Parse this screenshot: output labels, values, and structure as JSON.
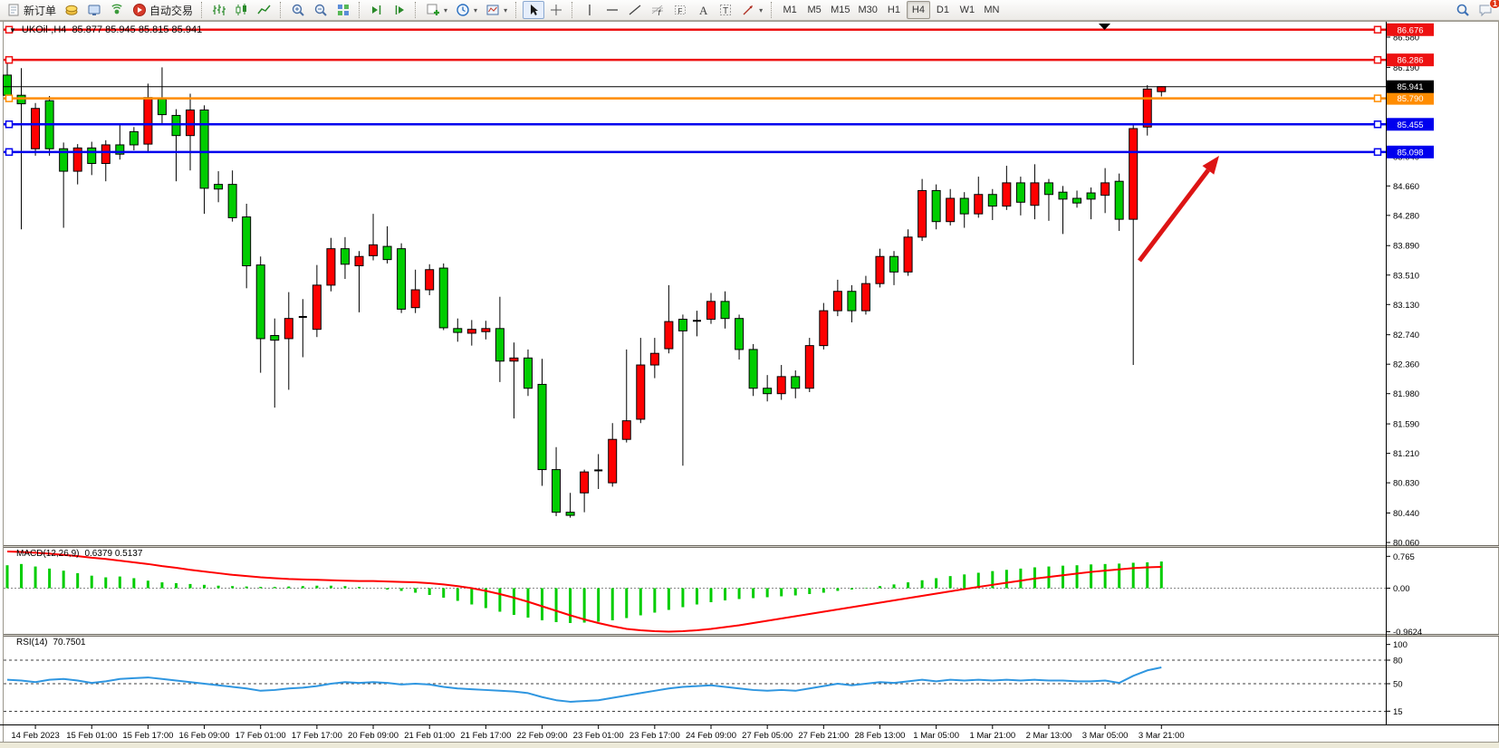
{
  "toolbar": {
    "new_order_label": "新订单",
    "autotrading_label": "自动交易",
    "timeframes": [
      "M1",
      "M5",
      "M15",
      "M30",
      "H1",
      "H4",
      "D1",
      "W1",
      "MN"
    ],
    "active_timeframe": "H4",
    "chat_badge": "1",
    "items": [
      {
        "type": "btn",
        "name": "new-order-button",
        "icon": "doc",
        "label_key": "new_order_label"
      },
      {
        "type": "btn",
        "name": "market-watch-button",
        "icon": "coins"
      },
      {
        "type": "btn",
        "name": "data-window-button",
        "icon": "monitor"
      },
      {
        "type": "btn",
        "name": "navigator-button",
        "icon": "signal"
      },
      {
        "type": "btn",
        "name": "autotrading-button",
        "icon": "autotrade",
        "label_key": "autotrading_label"
      },
      {
        "type": "sep"
      },
      {
        "type": "btn",
        "name": "bar-chart-button",
        "icon": "bars"
      },
      {
        "type": "btn",
        "name": "candlestick-chart-button",
        "icon": "candles"
      },
      {
        "type": "btn",
        "name": "line-chart-button",
        "icon": "line"
      },
      {
        "type": "sep"
      },
      {
        "type": "btn",
        "name": "zoom-in-button",
        "icon": "zoomin"
      },
      {
        "type": "btn",
        "name": "zoom-out-button",
        "icon": "zoomout"
      },
      {
        "type": "btn",
        "name": "tile-windows-button",
        "icon": "tile"
      },
      {
        "type": "sep"
      },
      {
        "type": "btn",
        "name": "auto-scroll-button",
        "icon": "scrollend"
      },
      {
        "type": "btn",
        "name": "chart-shift-button",
        "icon": "shift"
      },
      {
        "type": "sep"
      },
      {
        "type": "btn",
        "name": "add-indicator-button",
        "icon": "pluschart",
        "dd": true
      },
      {
        "type": "btn",
        "name": "periods-button",
        "icon": "clock",
        "dd": true
      },
      {
        "type": "btn",
        "name": "templates-button",
        "icon": "template",
        "dd": true
      },
      {
        "type": "sep"
      },
      {
        "type": "btn",
        "name": "cursor-button",
        "icon": "cursor",
        "active": true
      },
      {
        "type": "btn",
        "name": "crosshair-button",
        "icon": "crosshair"
      },
      {
        "type": "sep"
      },
      {
        "type": "btn",
        "name": "vertical-line-button",
        "icon": "vline"
      },
      {
        "type": "btn",
        "name": "horizontal-line-button",
        "icon": "hline"
      },
      {
        "type": "btn",
        "name": "trendline-button",
        "icon": "trend"
      },
      {
        "type": "btn",
        "name": "fibonacci-button",
        "icon": "fibo"
      },
      {
        "type": "btn",
        "name": "fibo-expansion-button",
        "icon": "channel"
      },
      {
        "type": "btn",
        "name": "text-button",
        "icon": "textA"
      },
      {
        "type": "btn",
        "name": "text-label-button",
        "icon": "textT"
      },
      {
        "type": "btn",
        "name": "arrows-button",
        "icon": "arrows",
        "dd": true
      },
      {
        "type": "sep"
      },
      {
        "type": "timeframes"
      },
      {
        "type": "spacer"
      },
      {
        "type": "btn",
        "name": "search-button",
        "icon": "search"
      },
      {
        "type": "btn",
        "name": "chat-button",
        "icon": "chat",
        "badge": "1"
      }
    ]
  },
  "chart_data": {
    "type": "candlestick",
    "symbol_title": "UKOil-,H4",
    "ohlc_text": "85.877 85.945 85.815 85.941",
    "ylim": [
      80.03,
      86.77
    ],
    "price_ticks": [
      "86.580",
      "86.190",
      "85.800",
      "85.420",
      "85.040",
      "84.660",
      "84.280",
      "83.890",
      "83.510",
      "83.130",
      "82.740",
      "82.360",
      "81.980",
      "81.590",
      "81.210",
      "80.830",
      "80.440",
      "80.060"
    ],
    "time_labels": [
      "14 Feb 2023",
      "15 Feb 01:00",
      "15 Feb 17:00",
      "16 Feb 09:00",
      "17 Feb 01:00",
      "17 Feb 17:00",
      "20 Feb 09:00",
      "21 Feb 01:00",
      "21 Feb 17:00",
      "22 Feb 09:00",
      "23 Feb 01:00",
      "23 Feb 17:00",
      "24 Feb 09:00",
      "27 Feb 05:00",
      "27 Feb 21:00",
      "28 Feb 13:00",
      "1 Mar 05:00",
      "1 Mar 21:00",
      "2 Mar 13:00",
      "3 Mar 05:00",
      "3 Mar 21:00"
    ],
    "first_label_bar": 2,
    "label_every_bars": 4,
    "colors": {
      "bull": "#fe0000",
      "bear": "#00cd00",
      "wick": "#000000",
      "bg": "#ffffff"
    },
    "hlines": [
      {
        "price": 86.676,
        "label": "86.676",
        "color": "#ee1111"
      },
      {
        "price": 86.286,
        "label": "86.286",
        "color": "#ee1111"
      },
      {
        "price": 85.79,
        "label": "85.790",
        "color": "#ff8c00"
      },
      {
        "price": 85.455,
        "label": "85.455",
        "color": "#0000ee"
      },
      {
        "price": 85.098,
        "label": "85.098",
        "color": "#0000ee"
      }
    ],
    "current_price": {
      "value": 85.941,
      "label": "85.941",
      "badge_color": "#000000"
    },
    "candles": [
      [
        86.09,
        86.33,
        85.78,
        85.83
      ],
      [
        85.83,
        86.18,
        84.1,
        85.72
      ],
      [
        85.14,
        85.73,
        85.05,
        85.66
      ],
      [
        85.76,
        85.82,
        85.05,
        85.14
      ],
      [
        85.14,
        85.22,
        84.12,
        84.85
      ],
      [
        84.85,
        85.2,
        84.68,
        85.15
      ],
      [
        85.15,
        85.23,
        84.8,
        84.95
      ],
      [
        84.95,
        85.25,
        84.72,
        85.19
      ],
      [
        85.19,
        85.46,
        85.0,
        85.07
      ],
      [
        85.36,
        85.42,
        85.12,
        85.19
      ],
      [
        85.2,
        85.98,
        85.1,
        85.8
      ],
      [
        85.78,
        86.19,
        85.45,
        85.58
      ],
      [
        85.57,
        85.65,
        84.72,
        85.31
      ],
      [
        85.31,
        85.85,
        84.86,
        85.64
      ],
      [
        85.64,
        85.7,
        84.3,
        84.63
      ],
      [
        84.68,
        84.85,
        84.45,
        84.62
      ],
      [
        84.68,
        84.86,
        84.2,
        84.25
      ],
      [
        84.26,
        84.43,
        83.34,
        83.63
      ],
      [
        83.64,
        83.75,
        82.25,
        82.69
      ],
      [
        82.73,
        82.95,
        81.8,
        82.67
      ],
      [
        82.69,
        83.29,
        82.03,
        82.95
      ],
      [
        82.95,
        83.2,
        82.45,
        82.97
      ],
      [
        82.81,
        83.64,
        82.71,
        83.38
      ],
      [
        83.38,
        83.99,
        83.3,
        83.85
      ],
      [
        83.85,
        84.0,
        83.46,
        83.65
      ],
      [
        83.63,
        83.82,
        83.03,
        83.75
      ],
      [
        83.76,
        84.3,
        83.7,
        83.9
      ],
      [
        83.88,
        84.14,
        83.66,
        83.71
      ],
      [
        83.85,
        83.92,
        83.02,
        83.07
      ],
      [
        83.09,
        83.58,
        83.02,
        83.32
      ],
      [
        83.32,
        83.65,
        83.25,
        83.58
      ],
      [
        83.6,
        83.66,
        82.8,
        82.83
      ],
      [
        82.82,
        82.95,
        82.65,
        82.77
      ],
      [
        82.76,
        82.93,
        82.6,
        82.81
      ],
      [
        82.78,
        82.92,
        82.68,
        82.82
      ],
      [
        82.82,
        83.23,
        82.13,
        82.4
      ],
      [
        82.4,
        82.64,
        81.66,
        82.44
      ],
      [
        82.44,
        82.55,
        81.95,
        82.05
      ],
      [
        82.1,
        82.43,
        80.79,
        81.0
      ],
      [
        81.0,
        81.29,
        80.4,
        80.45
      ],
      [
        80.45,
        80.7,
        80.38,
        80.41
      ],
      [
        80.7,
        81.0,
        80.45,
        80.97
      ],
      [
        80.97,
        81.2,
        80.75,
        80.99
      ],
      [
        80.83,
        81.6,
        80.78,
        81.39
      ],
      [
        81.39,
        82.55,
        81.35,
        81.63
      ],
      [
        81.65,
        82.7,
        81.6,
        82.35
      ],
      [
        82.35,
        82.7,
        82.18,
        82.5
      ],
      [
        82.56,
        83.38,
        82.5,
        82.91
      ],
      [
        82.94,
        83.0,
        81.05,
        82.79
      ],
      [
        82.9,
        83.05,
        82.72,
        82.92
      ],
      [
        82.94,
        83.28,
        82.88,
        83.17
      ],
      [
        83.17,
        83.3,
        82.82,
        82.95
      ],
      [
        82.95,
        83.0,
        82.42,
        82.55
      ],
      [
        82.55,
        82.62,
        81.95,
        82.05
      ],
      [
        82.05,
        82.22,
        81.88,
        81.98
      ],
      [
        81.98,
        82.35,
        81.9,
        82.2
      ],
      [
        82.2,
        82.28,
        81.92,
        82.05
      ],
      [
        82.05,
        82.7,
        82.0,
        82.6
      ],
      [
        82.6,
        83.15,
        82.55,
        83.05
      ],
      [
        83.05,
        83.45,
        82.98,
        83.3
      ],
      [
        83.3,
        83.38,
        82.9,
        83.05
      ],
      [
        83.05,
        83.5,
        83.0,
        83.4
      ],
      [
        83.4,
        83.85,
        83.35,
        83.75
      ],
      [
        83.75,
        83.82,
        83.38,
        83.55
      ],
      [
        83.55,
        84.1,
        83.5,
        84.0
      ],
      [
        84.0,
        84.75,
        83.95,
        84.6
      ],
      [
        84.6,
        84.68,
        84.1,
        84.2
      ],
      [
        84.2,
        84.62,
        84.15,
        84.5
      ],
      [
        84.5,
        84.58,
        84.12,
        84.3
      ],
      [
        84.3,
        84.78,
        84.25,
        84.55
      ],
      [
        84.55,
        84.62,
        84.22,
        84.4
      ],
      [
        84.4,
        84.92,
        84.35,
        84.7
      ],
      [
        84.7,
        84.78,
        84.28,
        84.45
      ],
      [
        84.41,
        84.94,
        84.23,
        84.7
      ],
      [
        84.7,
        84.75,
        84.21,
        84.55
      ],
      [
        84.58,
        84.66,
        84.04,
        84.49
      ],
      [
        84.5,
        84.6,
        84.38,
        84.44
      ],
      [
        84.57,
        84.64,
        84.23,
        84.49
      ],
      [
        84.54,
        84.89,
        84.31,
        84.7
      ],
      [
        84.72,
        84.82,
        84.08,
        84.23
      ],
      [
        84.23,
        85.47,
        82.35,
        85.4
      ],
      [
        85.42,
        85.96,
        85.31,
        85.91
      ],
      [
        85.877,
        85.945,
        85.815,
        85.941
      ]
    ],
    "macd": {
      "title": "MACD(12,26,9)",
      "values_text": "0.6379 0.5137",
      "ticks": [
        "0.765",
        "0.00",
        "-0.9624"
      ],
      "histogram_color": "#00cd00",
      "signal_color": "#fe0000",
      "histogram": [
        0.55,
        0.58,
        0.52,
        0.47,
        0.42,
        0.36,
        0.3,
        0.26,
        0.28,
        0.24,
        0.18,
        0.14,
        0.12,
        0.1,
        0.08,
        0.06,
        0.05,
        0.04,
        0.03,
        0.03,
        0.04,
        0.05,
        0.06,
        0.06,
        0.05,
        0.03,
        0.0,
        -0.03,
        -0.06,
        -0.1,
        -0.15,
        -0.21,
        -0.28,
        -0.36,
        -0.44,
        -0.52,
        -0.59,
        -0.65,
        -0.71,
        -0.75,
        -0.77,
        -0.76,
        -0.74,
        -0.71,
        -0.66,
        -0.6,
        -0.54,
        -0.48,
        -0.42,
        -0.36,
        -0.31,
        -0.27,
        -0.24,
        -0.22,
        -0.2,
        -0.18,
        -0.16,
        -0.13,
        -0.1,
        -0.06,
        -0.03,
        0.01,
        0.05,
        0.09,
        0.14,
        0.19,
        0.24,
        0.29,
        0.33,
        0.37,
        0.41,
        0.44,
        0.47,
        0.5,
        0.52,
        0.54,
        0.55,
        0.57,
        0.58,
        0.59,
        0.61,
        0.62,
        0.64
      ],
      "signal": [
        0.88,
        0.87,
        0.85,
        0.83,
        0.8,
        0.77,
        0.73,
        0.7,
        0.66,
        0.62,
        0.58,
        0.53,
        0.49,
        0.44,
        0.4,
        0.36,
        0.32,
        0.29,
        0.26,
        0.24,
        0.22,
        0.21,
        0.2,
        0.19,
        0.18,
        0.17,
        0.17,
        0.16,
        0.15,
        0.14,
        0.12,
        0.09,
        0.05,
        0.0,
        -0.06,
        -0.13,
        -0.21,
        -0.3,
        -0.4,
        -0.5,
        -0.6,
        -0.69,
        -0.77,
        -0.84,
        -0.9,
        -0.93,
        -0.95,
        -0.96,
        -0.95,
        -0.93,
        -0.9,
        -0.86,
        -0.82,
        -0.77,
        -0.72,
        -0.67,
        -0.62,
        -0.57,
        -0.52,
        -0.47,
        -0.42,
        -0.37,
        -0.32,
        -0.27,
        -0.22,
        -0.17,
        -0.12,
        -0.07,
        -0.02,
        0.03,
        0.08,
        0.13,
        0.18,
        0.23,
        0.27,
        0.31,
        0.35,
        0.39,
        0.42,
        0.45,
        0.48,
        0.5,
        0.51
      ]
    },
    "rsi": {
      "title": "RSI(14)",
      "value_text": "70.7501",
      "ticks": [
        "100",
        "80",
        "50",
        "15"
      ],
      "levels": [
        80,
        50,
        15
      ],
      "line_color": "#2f96e0",
      "values": [
        55,
        54,
        52,
        55,
        56,
        54,
        51,
        53,
        56,
        57,
        58,
        56,
        54,
        52,
        50,
        48,
        46,
        44,
        41,
        42,
        44,
        45,
        47,
        50,
        52,
        51,
        52,
        51,
        49,
        50,
        49,
        46,
        44,
        43,
        42,
        41,
        40,
        38,
        33,
        29,
        27,
        28,
        29,
        32,
        35,
        38,
        41,
        44,
        46,
        47,
        48,
        46,
        44,
        42,
        41,
        42,
        41,
        44,
        47,
        50,
        48,
        50,
        52,
        51,
        53,
        55,
        53,
        55,
        54,
        55,
        54,
        55,
        54,
        55,
        54,
        54,
        53,
        53,
        54,
        51,
        60,
        67,
        70.75
      ]
    },
    "arrow": {
      "from": [
        1258,
        288
      ],
      "to": [
        1346,
        172
      ],
      "color": "#dd1414"
    }
  }
}
